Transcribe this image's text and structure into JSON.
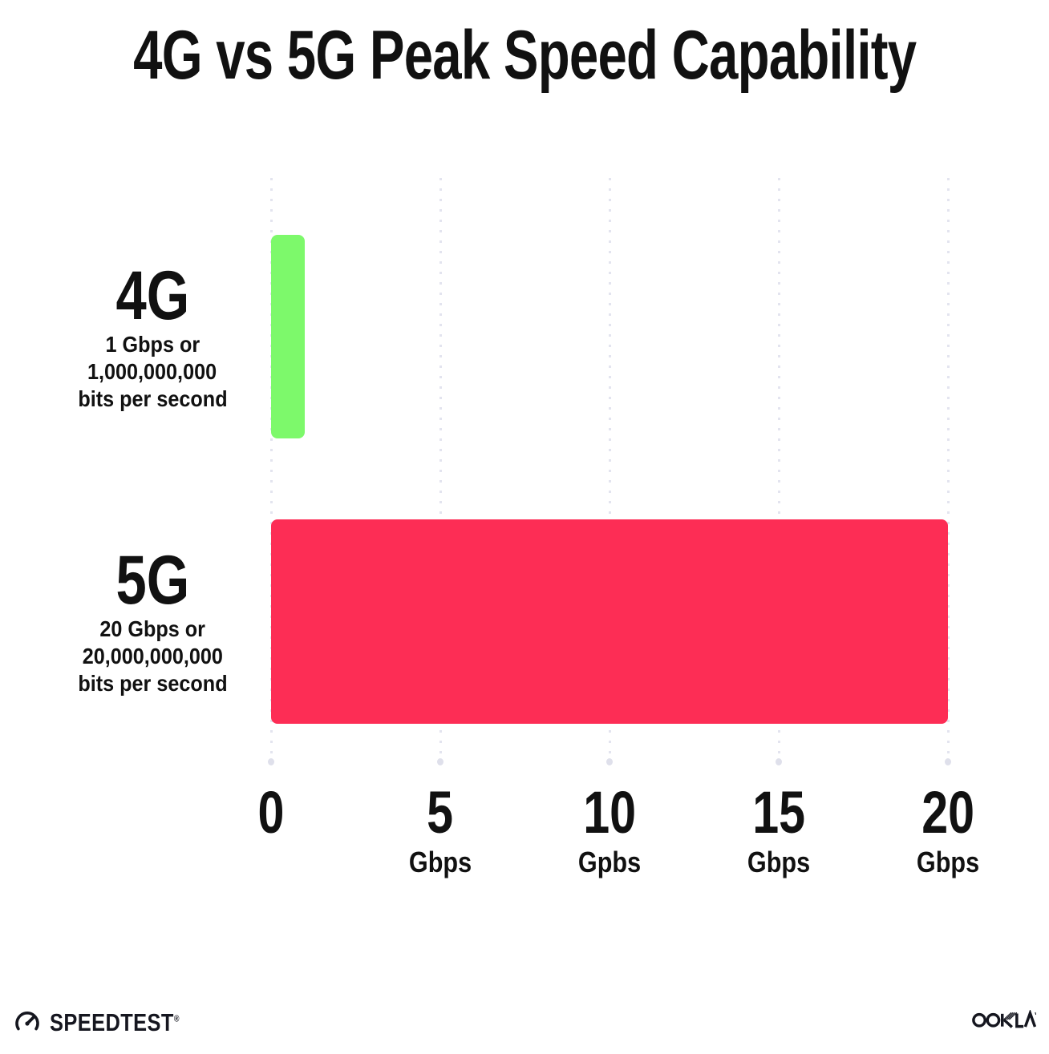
{
  "title": "4G vs 5G Peak Speed Capability",
  "chart_data": {
    "type": "bar",
    "orientation": "horizontal",
    "title": "4G vs 5G Peak Speed Capability",
    "categories": [
      "4G",
      "5G"
    ],
    "values": [
      1,
      20
    ],
    "value_unit": "Gbps",
    "xlim": [
      0,
      20
    ],
    "grid": "dotted-vertical",
    "legend": "none",
    "rows": [
      {
        "label": "4G",
        "desc": [
          "1 Gbps or",
          "1,000,000,000",
          "bits per second"
        ],
        "value": 1,
        "color": "#7DF96B"
      },
      {
        "label": "5G",
        "desc": [
          "20 Gbps or",
          "20,000,000,000",
          "bits per second"
        ],
        "value": 20,
        "color": "#FD2D55"
      }
    ],
    "x_ticks": [
      {
        "value": 0,
        "label": "0",
        "unit": ""
      },
      {
        "value": 5,
        "label": "5",
        "unit": "Gbps"
      },
      {
        "value": 10,
        "label": "10",
        "unit": "Gpbs"
      },
      {
        "value": 15,
        "label": "15",
        "unit": "Gbps"
      },
      {
        "value": 20,
        "label": "20",
        "unit": "Gbps"
      }
    ],
    "colors": {
      "bar_4g": "#7DF96B",
      "bar_5g": "#FD2D55",
      "gridline": "#e3e4ef",
      "text": "#111111"
    }
  },
  "footer": {
    "speedtest_label": "SPEEDTEST",
    "speedtest_reg": "®",
    "ookla_label": "OOKLA"
  }
}
